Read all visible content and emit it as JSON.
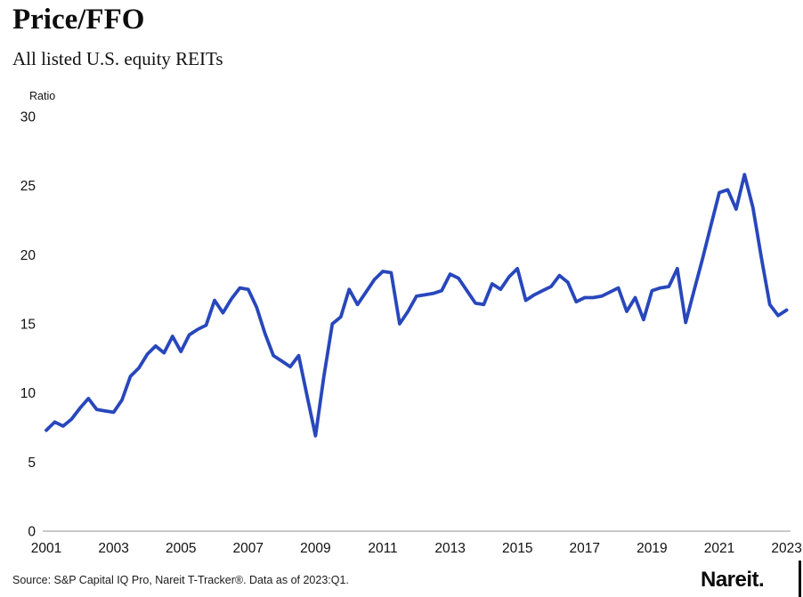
{
  "header": {
    "title": "Price/FFO",
    "subtitle": "All listed U.S. equity REITs"
  },
  "chart_data": {
    "type": "line",
    "title": "Price/FFO",
    "subtitle": "All listed U.S. equity REITs",
    "ylabel": "Ratio",
    "ylim": [
      0,
      30
    ],
    "yticks": [
      0,
      5,
      10,
      15,
      20,
      25,
      30
    ],
    "xticks": [
      "2001",
      "2003",
      "2005",
      "2007",
      "2009",
      "2011",
      "2013",
      "2015",
      "2017",
      "2019",
      "2021",
      "2023"
    ],
    "x_start": "2001:Q1",
    "x_end": "2023:Q1",
    "frequency": "quarterly",
    "grid": "off",
    "legend": "none",
    "line_color": "#2847BC",
    "axis_color": "#c9c9c9",
    "series": [
      {
        "name": "Price/FFO ratio, all listed U.S. equity REITs",
        "values": [
          7.3,
          7.9,
          7.6,
          8.1,
          8.9,
          9.6,
          8.8,
          8.7,
          8.6,
          9.5,
          11.2,
          11.8,
          12.8,
          13.4,
          12.9,
          14.1,
          13.0,
          14.2,
          14.6,
          14.9,
          16.7,
          15.8,
          16.8,
          17.6,
          17.5,
          16.2,
          14.3,
          12.7,
          12.3,
          11.9,
          12.7,
          9.8,
          6.9,
          11.2,
          15.0,
          15.5,
          17.5,
          16.4,
          17.3,
          18.2,
          18.8,
          18.7,
          15.0,
          15.9,
          17.0,
          17.1,
          17.2,
          17.4,
          18.6,
          18.3,
          17.4,
          16.5,
          16.4,
          17.9,
          17.5,
          18.4,
          19.0,
          16.7,
          17.1,
          17.4,
          17.7,
          18.5,
          18.0,
          16.6,
          16.9,
          16.9,
          17.0,
          17.3,
          17.6,
          15.9,
          16.9,
          15.3,
          17.4,
          17.6,
          17.7,
          19.0,
          15.1,
          17.4,
          19.7,
          22.1,
          24.5,
          24.7,
          23.3,
          25.8,
          23.4,
          19.8,
          16.4,
          15.6,
          16.0
        ]
      }
    ]
  },
  "footer": {
    "source": "Source: S&P Capital IQ Pro, Nareit T-Tracker®. Data as of 2023:Q1.",
    "logo_text": "Nareit."
  }
}
